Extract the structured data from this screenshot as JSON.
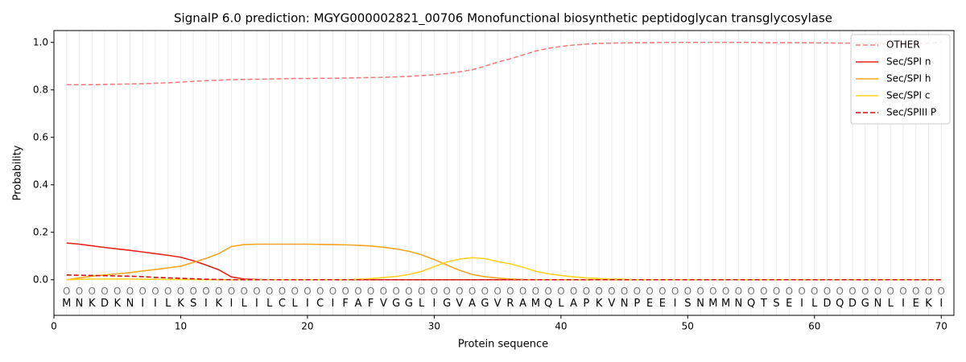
{
  "chart_data": {
    "type": "line",
    "title": "SignalP 6.0 prediction: MGYG000002821_00706 Monofunctional biosynthetic peptidoglycan transglycosylase",
    "xlabel": "Protein sequence",
    "ylabel": "Probability",
    "x": [
      1,
      2,
      3,
      4,
      5,
      6,
      7,
      8,
      9,
      10,
      11,
      12,
      13,
      14,
      15,
      16,
      17,
      18,
      19,
      20,
      21,
      22,
      23,
      24,
      25,
      26,
      27,
      28,
      29,
      30,
      31,
      32,
      33,
      34,
      35,
      36,
      37,
      38,
      39,
      40,
      41,
      42,
      43,
      44,
      45,
      46,
      47,
      48,
      49,
      50,
      51,
      52,
      53,
      54,
      55,
      56,
      57,
      58,
      59,
      60,
      61,
      62,
      63,
      64,
      65,
      66,
      67,
      68,
      69,
      70
    ],
    "sequence": [
      "M",
      "N",
      "K",
      "D",
      "K",
      "N",
      "I",
      "I",
      "L",
      "K",
      "S",
      "I",
      "K",
      "I",
      "L",
      "I",
      "L",
      "C",
      "L",
      "I",
      "C",
      "I",
      "F",
      "A",
      "F",
      "V",
      "G",
      "G",
      "L",
      "I",
      "G",
      "V",
      "A",
      "G",
      "V",
      "R",
      "A",
      "M",
      "Q",
      "L",
      "A",
      "P",
      "K",
      "V",
      "N",
      "P",
      "E",
      "E",
      "I",
      "S",
      "N",
      "M",
      "M",
      "N",
      "Q",
      "T",
      "S",
      "E",
      "I",
      "L",
      "D",
      "Q",
      "D",
      "G",
      "N",
      "L",
      "I",
      "E",
      "K",
      "I"
    ],
    "state_labels": [
      "O",
      "O",
      "O",
      "O",
      "O",
      "O",
      "O",
      "O",
      "O",
      "O",
      "O",
      "O",
      "O",
      "O",
      "O",
      "O",
      "O",
      "O",
      "O",
      "O",
      "O",
      "O",
      "O",
      "O",
      "O",
      "O",
      "O",
      "O",
      "O",
      "O",
      "O",
      "O",
      "O",
      "O",
      "O",
      "O",
      "O",
      "O",
      "O",
      "O",
      "O",
      "O",
      "O",
      "O",
      "O",
      "O",
      "O",
      "O",
      "O",
      "O",
      "O",
      "O",
      "O",
      "O",
      "O",
      "O",
      "O",
      "O",
      "O",
      "O",
      "O",
      "O",
      "O",
      "O",
      "O",
      "O",
      "O",
      "O",
      "O",
      "O"
    ],
    "series": [
      {
        "name": "OTHER",
        "color": "#f08080",
        "dashed": true,
        "values": [
          0.822,
          0.822,
          0.822,
          0.823,
          0.824,
          0.825,
          0.826,
          0.828,
          0.83,
          0.833,
          0.836,
          0.839,
          0.841,
          0.843,
          0.844,
          0.845,
          0.846,
          0.847,
          0.848,
          0.848,
          0.849,
          0.849,
          0.85,
          0.851,
          0.852,
          0.853,
          0.855,
          0.857,
          0.86,
          0.864,
          0.869,
          0.876,
          0.885,
          0.9,
          0.917,
          0.931,
          0.947,
          0.964,
          0.975,
          0.983,
          0.989,
          0.993,
          0.996,
          0.997,
          0.998,
          0.999,
          0.999,
          1.0,
          1.0,
          1.0,
          1.0,
          1.0,
          1.0,
          1.0,
          1.0,
          0.999,
          0.999,
          0.999,
          0.999,
          0.998,
          0.998,
          0.997,
          0.997,
          0.996,
          0.995,
          0.995,
          0.994,
          0.995,
          0.997,
          1.0
        ]
      },
      {
        "name": "Sec/SPI n",
        "color": "#e8231a",
        "dashed": false,
        "values": [
          0.155,
          0.15,
          0.143,
          0.136,
          0.13,
          0.124,
          0.117,
          0.11,
          0.103,
          0.095,
          0.08,
          0.062,
          0.042,
          0.012,
          0.003,
          0.001,
          0,
          0,
          0,
          0,
          0,
          0,
          0,
          0,
          0,
          0,
          0,
          0,
          0,
          0,
          0,
          0,
          0,
          0,
          0,
          0,
          0,
          0,
          0,
          0,
          0,
          0,
          0,
          0,
          0,
          0,
          0,
          0,
          0,
          0,
          0,
          0,
          0,
          0,
          0,
          0,
          0,
          0,
          0,
          0,
          0,
          0,
          0,
          0,
          0,
          0,
          0,
          0,
          0,
          0
        ]
      },
      {
        "name": "Sec/SPI h",
        "color": "#f5a623",
        "dashed": false,
        "values": [
          0.0,
          0.008,
          0.015,
          0.02,
          0.025,
          0.03,
          0.037,
          0.043,
          0.05,
          0.057,
          0.073,
          0.09,
          0.11,
          0.14,
          0.148,
          0.15,
          0.15,
          0.15,
          0.15,
          0.15,
          0.149,
          0.148,
          0.147,
          0.145,
          0.142,
          0.137,
          0.13,
          0.12,
          0.105,
          0.085,
          0.062,
          0.04,
          0.022,
          0.013,
          0.007,
          0.003,
          0.001,
          0,
          0,
          0,
          0,
          0,
          0,
          0,
          0,
          0,
          0,
          0,
          0,
          0,
          0,
          0,
          0,
          0,
          0,
          0,
          0,
          0,
          0,
          0,
          0,
          0,
          0,
          0,
          0,
          0,
          0,
          0,
          0,
          0
        ]
      },
      {
        "name": "Sec/SPI c",
        "color": "#ffd21f",
        "dashed": false,
        "values": [
          0.0,
          0.002,
          0.003,
          0.003,
          0.003,
          0.003,
          0.002,
          0.002,
          0.001,
          0.001,
          0.001,
          0,
          0,
          0,
          0,
          0,
          0,
          0,
          0,
          0,
          0,
          0,
          0,
          0.002,
          0.005,
          0.009,
          0.014,
          0.022,
          0.035,
          0.055,
          0.075,
          0.087,
          0.093,
          0.089,
          0.077,
          0.067,
          0.053,
          0.036,
          0.025,
          0.018,
          0.012,
          0.008,
          0.005,
          0.003,
          0.002,
          0,
          0,
          0,
          0,
          0,
          0,
          0,
          0,
          0,
          0,
          0,
          0,
          0,
          0,
          0,
          0,
          0,
          0,
          0,
          0,
          0,
          0,
          0,
          0,
          0
        ]
      },
      {
        "name": "Sec/SPIII P",
        "color": "#cc1111",
        "dashed": true,
        "values": [
          0.02,
          0.019,
          0.018,
          0.017,
          0.016,
          0.015,
          0.013,
          0.01,
          0.008,
          0.006,
          0.004,
          0.002,
          0.001,
          0,
          0,
          0,
          0,
          0,
          0,
          0,
          0,
          0,
          0,
          0,
          0,
          0,
          0,
          0,
          0,
          0,
          0,
          0,
          0,
          0,
          0,
          0,
          0,
          0,
          0,
          0,
          0,
          0,
          0,
          0,
          0,
          0,
          0,
          0,
          0,
          0,
          0,
          0,
          0,
          0,
          0,
          0,
          0,
          0,
          0,
          0,
          0,
          0,
          0,
          0,
          0,
          0,
          0,
          0,
          0,
          0
        ]
      }
    ],
    "xlim": [
      0,
      71
    ],
    "ylim": [
      -0.15,
      1.05
    ],
    "xticks": [
      0,
      10,
      20,
      30,
      40,
      50,
      60,
      70
    ],
    "yticks": [
      {
        "value": 0,
        "label": "0.0"
      },
      {
        "value": 0.2,
        "label": "0.2"
      },
      {
        "value": 0.4,
        "label": "0.4"
      },
      {
        "value": 0.6,
        "label": "0.6"
      },
      {
        "value": 0.8,
        "label": "0.8"
      },
      {
        "value": 1.0,
        "label": "1.0"
      }
    ],
    "position_grid": true,
    "legend": "upper right"
  }
}
